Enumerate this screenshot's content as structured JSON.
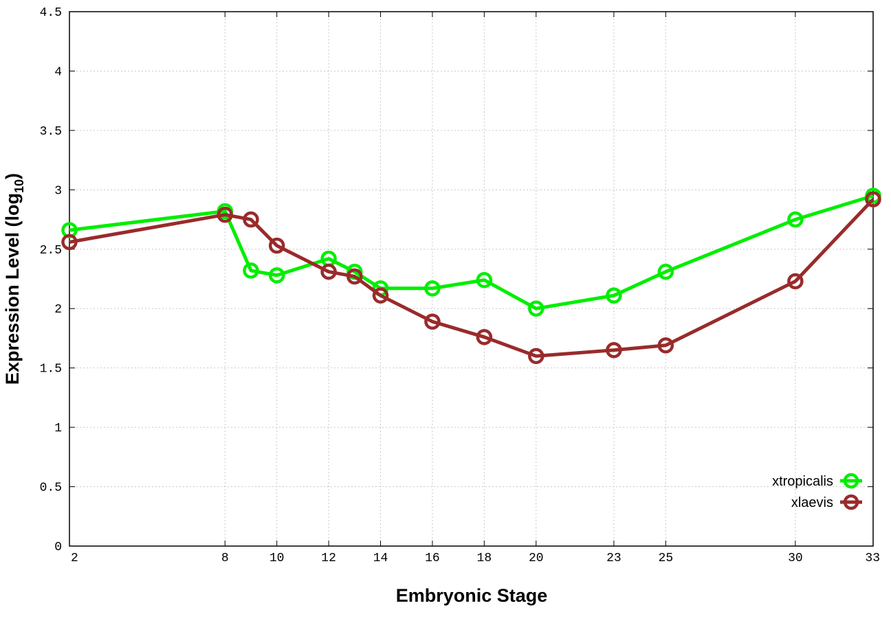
{
  "chart_data": {
    "type": "line",
    "xlabel": "Embryonic Stage",
    "ylabel": "Expression Level (log",
    "ylabel_subscript": "10",
    "ylabel_close": ")",
    "xlim": [
      2,
      33
    ],
    "ylim": [
      0,
      4.5
    ],
    "x_ticks": [
      2,
      8,
      10,
      12,
      14,
      16,
      18,
      20,
      23,
      25,
      30,
      33
    ],
    "y_ticks": [
      0,
      0.5,
      1,
      1.5,
      2,
      2.5,
      3,
      3.5,
      4,
      4.5
    ],
    "y_tick_labels": [
      "0",
      "0.5",
      "1",
      "1.5",
      "2",
      "2.5",
      "3",
      "3.5",
      "4",
      "4.5"
    ],
    "grid": true,
    "legend_position": "bottom-right",
    "series": [
      {
        "name": "xtropicalis",
        "color": "#00ee00",
        "x": [
          2,
          8,
          9,
          10,
          12,
          13,
          14,
          16,
          18,
          20,
          23,
          25,
          30,
          33
        ],
        "y": [
          2.66,
          2.82,
          2.32,
          2.28,
          2.42,
          2.31,
          2.17,
          2.17,
          2.24,
          2.0,
          2.11,
          2.31,
          2.75,
          2.95
        ]
      },
      {
        "name": "xlaevis",
        "color": "#992b2b",
        "x": [
          2,
          8,
          9,
          10,
          12,
          13,
          14,
          16,
          18,
          20,
          23,
          25,
          30,
          33
        ],
        "y": [
          2.56,
          2.79,
          2.75,
          2.53,
          2.31,
          2.27,
          2.11,
          1.89,
          1.76,
          1.6,
          1.65,
          1.69,
          2.23,
          2.92
        ]
      }
    ]
  }
}
